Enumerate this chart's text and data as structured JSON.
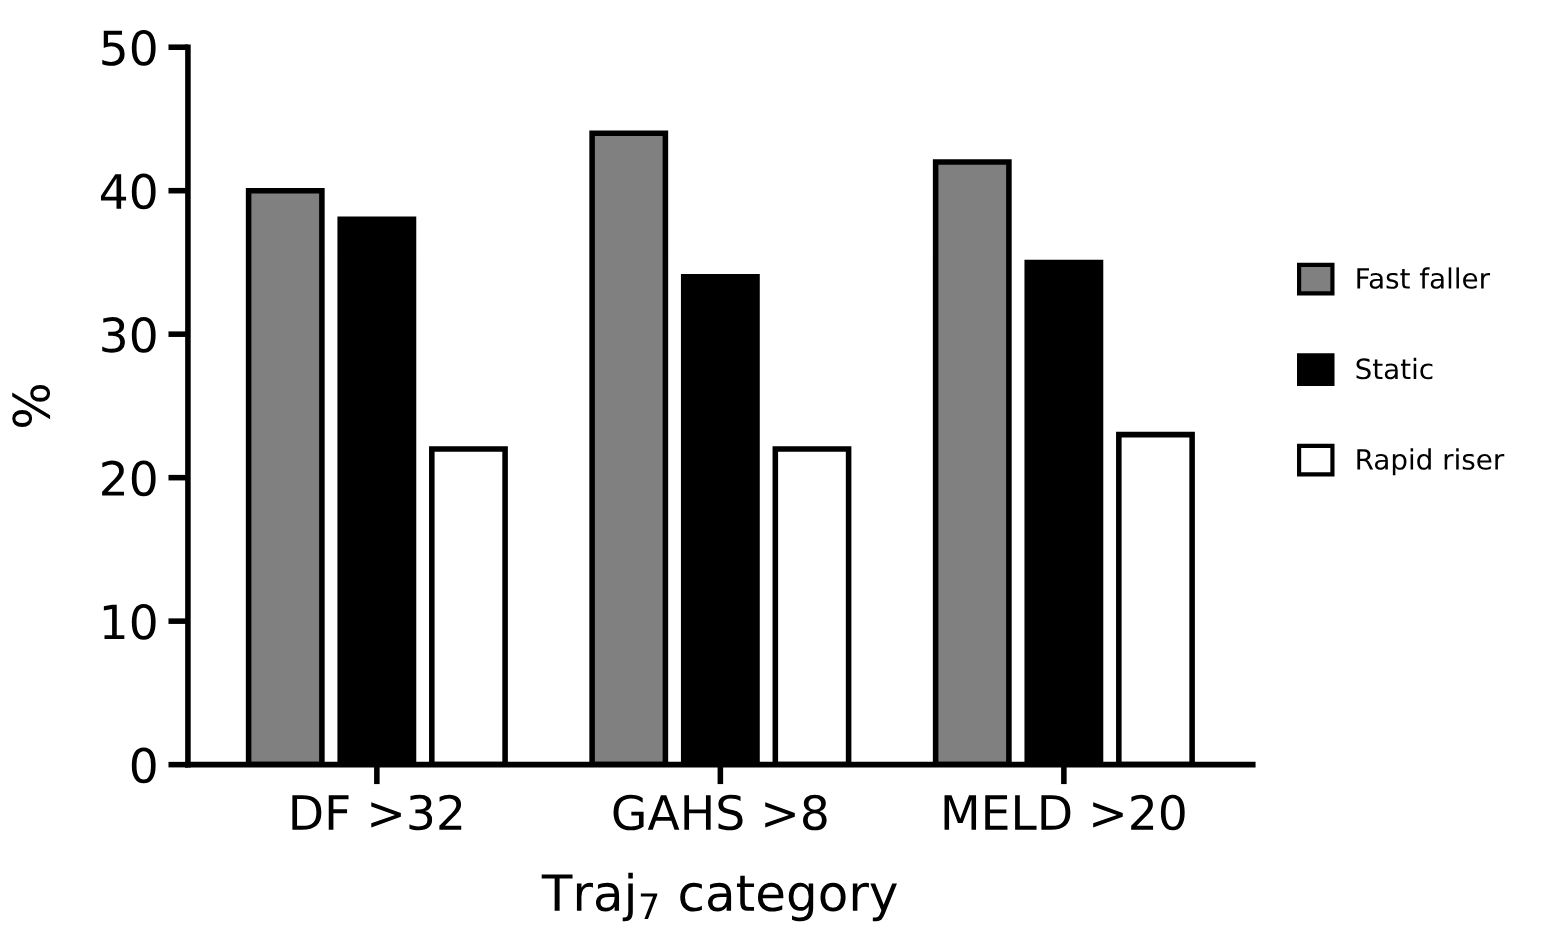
{
  "chart_data": {
    "type": "bar",
    "xlabel": "Traj$_{7}$ category",
    "ylabel": "%",
    "categories": [
      "DF >32",
      "GAHS >8",
      "MELD >20"
    ],
    "series": [
      {
        "name": "Fast faller",
        "color": "#808080",
        "values": [
          40,
          44,
          42
        ]
      },
      {
        "name": "Static",
        "color": "#000000",
        "values": [
          38,
          34,
          35
        ]
      },
      {
        "name": "Rapid riser",
        "color": "#ffffff",
        "values": [
          22,
          22,
          23
        ]
      }
    ],
    "ylim": [
      0,
      50
    ],
    "yticks": [
      0,
      10,
      20,
      30,
      40,
      50
    ],
    "grid": false,
    "legend": "right"
  }
}
